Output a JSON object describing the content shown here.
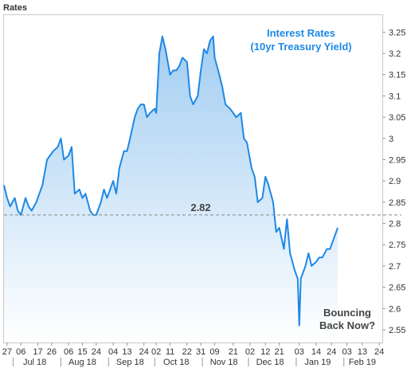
{
  "chart_data": {
    "type": "area",
    "corner_label": "Rates",
    "title": "Interest Rates",
    "subtitle": "(10yr Treasury Yield)",
    "annotation": "Bouncing\nBack Now?",
    "reference_line": {
      "value": 2.82,
      "label": "2.82"
    },
    "ylim": [
      2.52,
      3.29
    ],
    "y_ticks": [
      2.55,
      2.6,
      2.65,
      2.7,
      2.75,
      2.8,
      2.85,
      2.9,
      2.95,
      3,
      3.05,
      3.1,
      3.15,
      3.2,
      3.25
    ],
    "y_tick_labels": [
      "2.55",
      "2.6",
      "2.65",
      "2.7",
      "2.75",
      "2.8",
      "2.85",
      "2.9",
      "2.95",
      "3",
      "3.05",
      "3.1",
      "3.15",
      "3.2",
      "3.25"
    ],
    "x_axis_range": [
      "2018-06-25",
      "2019-02-26"
    ],
    "x_ticks": [
      {
        "date": "2018-06-27",
        "label": "27"
      },
      {
        "date": "2018-07-06",
        "label": "06"
      },
      {
        "date": "2018-07-17",
        "label": "17"
      },
      {
        "date": "2018-07-26",
        "label": "26"
      },
      {
        "date": "2018-08-06",
        "label": "06"
      },
      {
        "date": "2018-08-15",
        "label": "15"
      },
      {
        "date": "2018-08-24",
        "label": "24"
      },
      {
        "date": "2018-09-04",
        "label": "04"
      },
      {
        "date": "2018-09-13",
        "label": "13"
      },
      {
        "date": "2018-09-24",
        "label": "24"
      },
      {
        "date": "2018-10-02",
        "label": "02"
      },
      {
        "date": "2018-10-11",
        "label": "11"
      },
      {
        "date": "2018-10-22",
        "label": "22"
      },
      {
        "date": "2018-10-31",
        "label": "31"
      },
      {
        "date": "2018-11-09",
        "label": "09"
      },
      {
        "date": "2018-11-21",
        "label": "21"
      },
      {
        "date": "2018-12-02",
        "label": "02"
      },
      {
        "date": "2018-12-12",
        "label": "12"
      },
      {
        "date": "2018-12-21",
        "label": "21"
      },
      {
        "date": "2019-01-03",
        "label": "03"
      },
      {
        "date": "2019-01-14",
        "label": "14"
      },
      {
        "date": "2019-01-24",
        "label": "24"
      },
      {
        "date": "2019-02-03",
        "label": "03"
      },
      {
        "date": "2019-02-13",
        "label": "13"
      },
      {
        "date": "2019-02-24",
        "label": "24"
      }
    ],
    "month_labels": [
      {
        "date": "2018-07-15",
        "label": "Jul 18"
      },
      {
        "date": "2018-08-15",
        "label": "Aug 18"
      },
      {
        "date": "2018-09-15",
        "label": "Sep 18"
      },
      {
        "date": "2018-10-15",
        "label": "Oct 18"
      },
      {
        "date": "2018-11-15",
        "label": "Nov 18"
      },
      {
        "date": "2018-12-15",
        "label": "Dec 18"
      },
      {
        "date": "2019-01-15",
        "label": "Jan 19"
      },
      {
        "date": "2019-02-13",
        "label": "Feb 19"
      }
    ],
    "month_separators": [
      "2018-07-01",
      "2018-08-01",
      "2018-09-01",
      "2018-10-01",
      "2018-11-01",
      "2018-12-01",
      "2019-01-01",
      "2019-02-01"
    ],
    "grid": false,
    "series": [
      {
        "line_color": "#1e88e5",
        "points": [
          [
            "2018-06-25",
            2.89
          ],
          [
            "2018-06-27",
            2.86
          ],
          [
            "2018-06-29",
            2.84
          ],
          [
            "2018-07-02",
            2.86
          ],
          [
            "2018-07-04",
            2.83
          ],
          [
            "2018-07-06",
            2.82
          ],
          [
            "2018-07-09",
            2.86
          ],
          [
            "2018-07-11",
            2.84
          ],
          [
            "2018-07-13",
            2.83
          ],
          [
            "2018-07-16",
            2.85
          ],
          [
            "2018-07-18",
            2.87
          ],
          [
            "2018-07-20",
            2.89
          ],
          [
            "2018-07-23",
            2.95
          ],
          [
            "2018-07-25",
            2.96
          ],
          [
            "2018-07-27",
            2.97
          ],
          [
            "2018-07-30",
            2.98
          ],
          [
            "2018-08-01",
            3.0
          ],
          [
            "2018-08-03",
            2.95
          ],
          [
            "2018-08-06",
            2.96
          ],
          [
            "2018-08-08",
            2.98
          ],
          [
            "2018-08-10",
            2.87
          ],
          [
            "2018-08-13",
            2.88
          ],
          [
            "2018-08-15",
            2.86
          ],
          [
            "2018-08-17",
            2.87
          ],
          [
            "2018-08-20",
            2.83
          ],
          [
            "2018-08-22",
            2.82
          ],
          [
            "2018-08-24",
            2.82
          ],
          [
            "2018-08-27",
            2.85
          ],
          [
            "2018-08-29",
            2.88
          ],
          [
            "2018-08-31",
            2.86
          ],
          [
            "2018-09-04",
            2.9
          ],
          [
            "2018-09-06",
            2.87
          ],
          [
            "2018-09-08",
            2.93
          ],
          [
            "2018-09-11",
            2.97
          ],
          [
            "2018-09-13",
            2.97
          ],
          [
            "2018-09-15",
            3.0
          ],
          [
            "2018-09-18",
            3.05
          ],
          [
            "2018-09-20",
            3.07
          ],
          [
            "2018-09-22",
            3.08
          ],
          [
            "2018-09-24",
            3.08
          ],
          [
            "2018-09-26",
            3.05
          ],
          [
            "2018-09-28",
            3.06
          ],
          [
            "2018-10-01",
            3.07
          ],
          [
            "2018-10-02",
            3.06
          ],
          [
            "2018-10-04",
            3.2
          ],
          [
            "2018-10-06",
            3.24
          ],
          [
            "2018-10-08",
            3.21
          ],
          [
            "2018-10-10",
            3.17
          ],
          [
            "2018-10-11",
            3.15
          ],
          [
            "2018-10-13",
            3.16
          ],
          [
            "2018-10-15",
            3.16
          ],
          [
            "2018-10-17",
            3.17
          ],
          [
            "2018-10-19",
            3.19
          ],
          [
            "2018-10-22",
            3.18
          ],
          [
            "2018-10-24",
            3.1
          ],
          [
            "2018-10-26",
            3.08
          ],
          [
            "2018-10-29",
            3.1
          ],
          [
            "2018-10-31",
            3.16
          ],
          [
            "2018-11-02",
            3.21
          ],
          [
            "2018-11-04",
            3.2
          ],
          [
            "2018-11-06",
            3.23
          ],
          [
            "2018-11-08",
            3.24
          ],
          [
            "2018-11-09",
            3.19
          ],
          [
            "2018-11-12",
            3.15
          ],
          [
            "2018-11-14",
            3.12
          ],
          [
            "2018-11-16",
            3.08
          ],
          [
            "2018-11-19",
            3.07
          ],
          [
            "2018-11-21",
            3.06
          ],
          [
            "2018-11-23",
            3.05
          ],
          [
            "2018-11-26",
            3.06
          ],
          [
            "2018-11-28",
            3.0
          ],
          [
            "2018-11-30",
            2.99
          ],
          [
            "2018-12-03",
            2.93
          ],
          [
            "2018-12-05",
            2.91
          ],
          [
            "2018-12-07",
            2.85
          ],
          [
            "2018-12-10",
            2.86
          ],
          [
            "2018-12-12",
            2.91
          ],
          [
            "2018-12-14",
            2.89
          ],
          [
            "2018-12-17",
            2.85
          ],
          [
            "2018-12-19",
            2.78
          ],
          [
            "2018-12-21",
            2.79
          ],
          [
            "2018-12-24",
            2.74
          ],
          [
            "2018-12-26",
            2.81
          ],
          [
            "2018-12-28",
            2.73
          ],
          [
            "2018-12-31",
            2.69
          ],
          [
            "2019-01-02",
            2.67
          ],
          [
            "2019-01-03",
            2.56
          ],
          [
            "2019-01-04",
            2.67
          ],
          [
            "2019-01-07",
            2.7
          ],
          [
            "2019-01-09",
            2.73
          ],
          [
            "2019-01-11",
            2.7
          ],
          [
            "2019-01-14",
            2.71
          ],
          [
            "2019-01-16",
            2.72
          ],
          [
            "2019-01-18",
            2.72
          ],
          [
            "2019-01-21",
            2.74
          ],
          [
            "2019-01-23",
            2.74
          ],
          [
            "2019-01-25",
            2.76
          ],
          [
            "2019-01-28",
            2.79
          ]
        ]
      }
    ]
  }
}
